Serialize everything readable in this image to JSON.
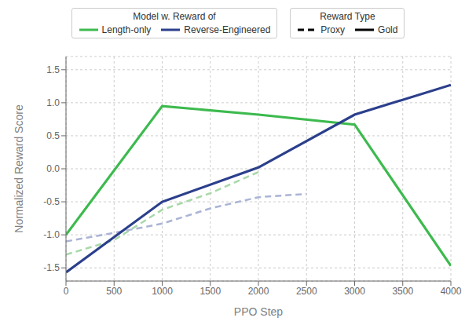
{
  "chart_data": {
    "type": "line",
    "title": "",
    "xlabel": "PPO Step",
    "ylabel": "Normalized Reward Score",
    "xlim": [
      0,
      4000
    ],
    "ylim": [
      -1.7,
      1.7
    ],
    "xticks": [
      0,
      500,
      1000,
      1500,
      2000,
      2500,
      3000,
      3500,
      4000
    ],
    "yticks": [
      -1.5,
      {
        "value": -1.0,
        "label": "-1.0"
      },
      -0.5,
      {
        "value": 0.0,
        "label": "0.0"
      },
      0.5,
      {
        "value": 1.0,
        "label": "1.0"
      },
      1.5
    ],
    "grid": true,
    "series": [
      {
        "x": [
          0,
          500,
          1000,
          1500,
          2000
        ],
        "values": [
          -1.3,
          -1.08,
          -0.62,
          -0.37,
          -0.05
        ],
        "color": "#a8d8a8",
        "line_style": "dashed"
      },
      {
        "x": [
          0,
          500,
          1000,
          1500,
          2000,
          2500
        ],
        "values": [
          -1.1,
          -0.97,
          -0.83,
          -0.6,
          -0.43,
          -0.38
        ],
        "color": "#aab4d4",
        "line_style": "dashed"
      },
      {
        "x": [
          0,
          1000,
          2000,
          3000,
          4000
        ],
        "values": [
          -1.0,
          0.95,
          0.82,
          0.67,
          -1.47
        ],
        "color": "#3dba4e",
        "line_style": "solid"
      },
      {
        "x": [
          0,
          1000,
          2000,
          3000,
          4000
        ],
        "values": [
          -1.57,
          -0.5,
          0.02,
          0.82,
          1.27
        ],
        "color": "#2b3f8c",
        "line_style": "solid"
      }
    ],
    "legends": [
      {
        "title": "Model w. Reward of",
        "entries": [
          {
            "label": "Length-only",
            "color": "#3dba4e",
            "line_style": "solid"
          },
          {
            "label": "Reverse-Engineered",
            "color": "#2b3f8c",
            "line_style": "solid"
          }
        ]
      },
      {
        "title": "Reward Type",
        "entries": [
          {
            "label": "Proxy",
            "color": "black",
            "line_style": "dashed"
          },
          {
            "label": "Gold",
            "color": "black",
            "line_style": "solid"
          }
        ]
      }
    ]
  }
}
